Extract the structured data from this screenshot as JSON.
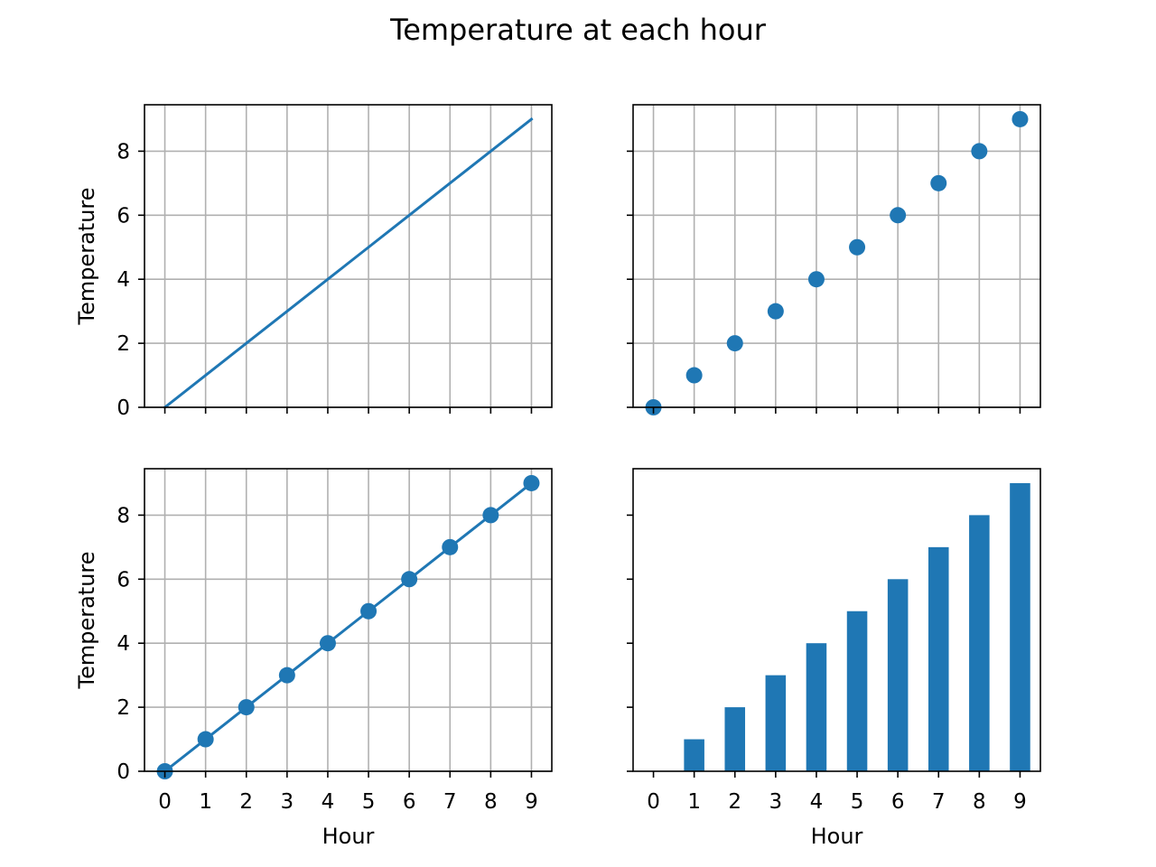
{
  "figure": {
    "suptitle": "Temperature at each hour"
  },
  "colors": {
    "series": "#1f77b4",
    "grid": "#b0b0b0",
    "axes": "#000000"
  },
  "chart_data": [
    {
      "id": "top-left",
      "type": "line",
      "marker": false,
      "grid": true,
      "x": [
        0,
        1,
        2,
        3,
        4,
        5,
        6,
        7,
        8,
        9
      ],
      "values": [
        0,
        1,
        2,
        3,
        4,
        5,
        6,
        7,
        8,
        9
      ],
      "xlim": [
        -0.5,
        9.5
      ],
      "ylim": [
        0,
        9.45
      ],
      "xticks": [
        0,
        1,
        2,
        3,
        4,
        5,
        6,
        7,
        8,
        9
      ],
      "yticks": [
        0,
        2,
        4,
        6,
        8
      ],
      "show_xticklabels": false,
      "show_yticklabels": true,
      "xlabel": "",
      "ylabel": "Temperature"
    },
    {
      "id": "top-right",
      "type": "scatter",
      "grid": true,
      "x": [
        0,
        1,
        2,
        3,
        4,
        5,
        6,
        7,
        8,
        9
      ],
      "values": [
        0,
        1,
        2,
        3,
        4,
        5,
        6,
        7,
        8,
        9
      ],
      "xlim": [
        -0.5,
        9.5
      ],
      "ylim": [
        0,
        9.45
      ],
      "xticks": [
        0,
        1,
        2,
        3,
        4,
        5,
        6,
        7,
        8,
        9
      ],
      "yticks": [
        0,
        2,
        4,
        6,
        8
      ],
      "show_xticklabels": false,
      "show_yticklabels": false,
      "xlabel": "",
      "ylabel": ""
    },
    {
      "id": "bottom-left",
      "type": "line",
      "marker": true,
      "grid": true,
      "x": [
        0,
        1,
        2,
        3,
        4,
        5,
        6,
        7,
        8,
        9
      ],
      "values": [
        0,
        1,
        2,
        3,
        4,
        5,
        6,
        7,
        8,
        9
      ],
      "xlim": [
        -0.5,
        9.5
      ],
      "ylim": [
        0,
        9.45
      ],
      "xticks": [
        0,
        1,
        2,
        3,
        4,
        5,
        6,
        7,
        8,
        9
      ],
      "yticks": [
        0,
        2,
        4,
        6,
        8
      ],
      "show_xticklabels": true,
      "show_yticklabels": true,
      "xlabel": "Hour",
      "ylabel": "Temperature"
    },
    {
      "id": "bottom-right",
      "type": "bar",
      "grid": false,
      "bar_width": 0.5,
      "x": [
        0,
        1,
        2,
        3,
        4,
        5,
        6,
        7,
        8,
        9
      ],
      "values": [
        0,
        1,
        2,
        3,
        4,
        5,
        6,
        7,
        8,
        9
      ],
      "xlim": [
        -0.5,
        9.5
      ],
      "ylim": [
        0,
        9.45
      ],
      "xticks": [
        0,
        1,
        2,
        3,
        4,
        5,
        6,
        7,
        8,
        9
      ],
      "yticks": [
        0,
        2,
        4,
        6,
        8
      ],
      "show_xticklabels": true,
      "show_yticklabels": false,
      "xlabel": "Hour",
      "ylabel": ""
    }
  ]
}
